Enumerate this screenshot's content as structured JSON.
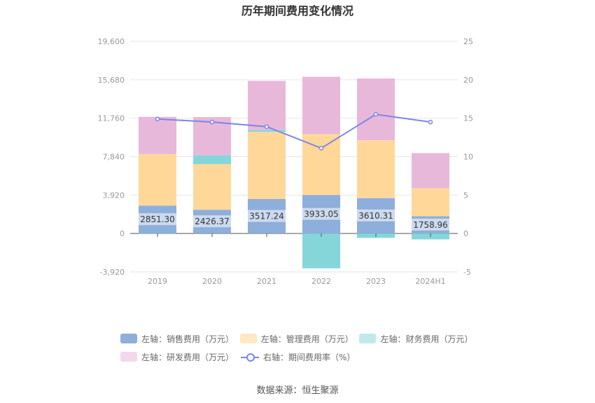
{
  "chart_data": {
    "type": "bar",
    "title": "历年期间费用变化情况",
    "categories": [
      "2019",
      "2020",
      "2021",
      "2022",
      "2023",
      "2024H1"
    ],
    "stacked": true,
    "series": [
      {
        "name": "左轴：销售费用（万元）",
        "axis": "left",
        "color": "#8eaedb",
        "values": [
          2851.3,
          2426.37,
          3517.24,
          3933.05,
          3610.31,
          1758.96
        ],
        "labels": [
          "2851.30",
          "2426.37",
          "3517.24",
          "3933.05",
          "3610.31",
          "1758.96"
        ]
      },
      {
        "name": "左轴：管理费用（万元）",
        "axis": "left",
        "color": "#ffd899",
        "values": [
          5250,
          4650,
          6850,
          6200,
          5900,
          2850
        ]
      },
      {
        "name": "左轴：财务费用（万元）",
        "axis": "left",
        "color": "#85d6d9",
        "values": [
          -50,
          900,
          200,
          -3550,
          -450,
          -600
        ]
      },
      {
        "name": "左轴：研发费用（万元）",
        "axis": "left",
        "color": "#e8b8da",
        "values": [
          3800,
          3900,
          5000,
          5850,
          6300,
          3600
        ]
      }
    ],
    "line": {
      "name": "右轴：期间费用率（%）",
      "axis": "right",
      "color": "#7b86e3",
      "values": [
        14.9,
        14.5,
        13.9,
        11.1,
        15.5,
        14.5
      ]
    },
    "left_axis": {
      "min": -3920,
      "max": 19600,
      "ticks": [
        -3920,
        0,
        3920,
        7840,
        11760,
        15680,
        19600
      ],
      "tick_labels": [
        "-3,920",
        "0",
        "3,920",
        "7,840",
        "11,760",
        "15,680",
        "19,600"
      ]
    },
    "right_axis": {
      "min": -5,
      "max": 25,
      "ticks": [
        -5,
        0,
        5,
        10,
        15,
        20,
        25
      ],
      "tick_labels": [
        "-5",
        "0",
        "5",
        "10",
        "15",
        "20",
        "25"
      ]
    },
    "grid": true,
    "legend_position": "bottom"
  },
  "legend": {
    "items": [
      "左轴：销售费用（万元）",
      "左轴：管理费用（万元）",
      "左轴：财务费用（万元）",
      "左轴：研发费用（万元）",
      "右轴：期间费用率（%）"
    ]
  },
  "footer": {
    "source": "数据来源：恒生聚源"
  }
}
